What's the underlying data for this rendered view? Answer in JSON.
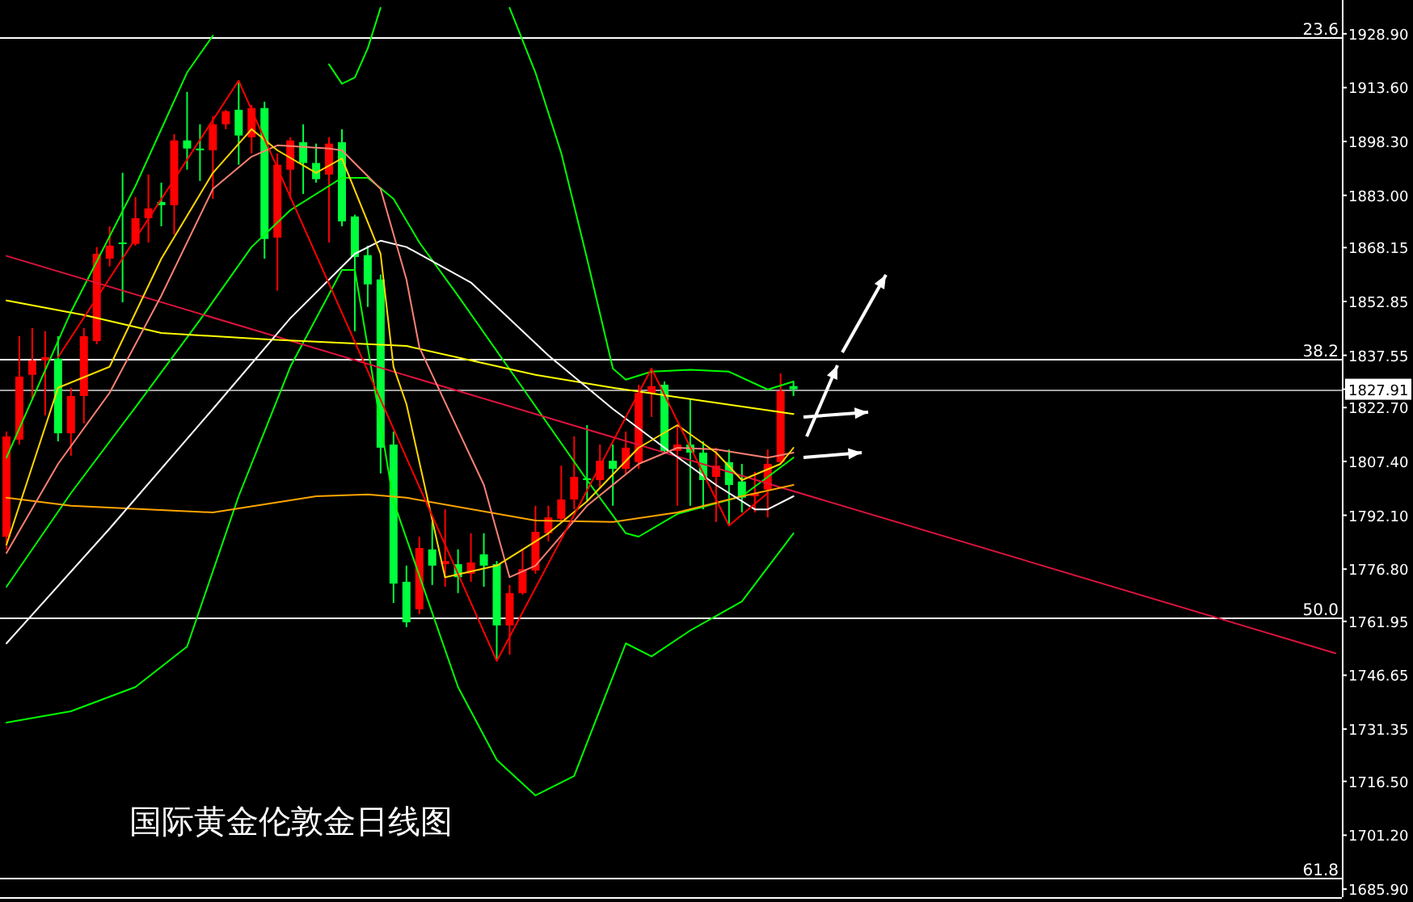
{
  "chart_data": {
    "type": "candlestick",
    "title": "国际黄金伦敦金日线图",
    "categories": [
      null,
      null,
      null,
      null,
      null,
      null,
      null,
      null,
      null,
      null,
      null,
      null,
      null,
      null,
      null,
      null,
      null,
      null,
      null,
      null,
      null,
      null,
      null,
      null,
      null,
      null,
      null,
      null,
      null,
      null,
      null,
      null,
      null,
      null,
      null,
      null,
      null,
      null,
      null,
      null,
      null,
      null,
      null,
      null,
      null,
      null,
      null,
      null,
      null,
      null,
      null,
      null,
      null,
      null,
      null,
      null,
      null,
      null,
      null,
      null,
      null,
      null,
      null,
      null,
      null,
      null,
      null,
      null,
      null,
      null,
      null,
      null,
      null,
      null,
      null,
      null,
      null,
      null,
      null,
      null,
      null,
      null,
      null,
      null,
      null,
      null,
      null,
      null,
      null,
      null,
      null,
      null,
      null,
      null,
      null,
      null,
      null,
      null,
      null,
      null,
      null,
      null,
      null,
      null
    ],
    "ohlc": [
      [
        1786.0,
        1815.9,
        1782.4,
        1814.5
      ],
      [
        1813.6,
        1843.0,
        1812.2,
        1831.5
      ],
      [
        1832.0,
        1845.3,
        1825.1,
        1836.1
      ],
      [
        1836.1,
        1844.4,
        1820.5,
        1837.0
      ],
      [
        1836.6,
        1843.0,
        1813.1,
        1815.4
      ],
      [
        1815.4,
        1828.3,
        1809.0,
        1826.0
      ],
      [
        1826.0,
        1845.3,
        1818.2,
        1843.0
      ],
      [
        1841.6,
        1868.3,
        1840.7,
        1866.4
      ],
      [
        1865.0,
        1874.2,
        1862.8,
        1868.7
      ],
      [
        1869.6,
        1889.4,
        1852.6,
        1869.2
      ],
      [
        1869.2,
        1882.5,
        1868.7,
        1876.5
      ],
      [
        1876.5,
        1888.9,
        1869.6,
        1879.3
      ],
      [
        1881.1,
        1886.6,
        1874.2,
        1880.2
      ],
      [
        1880.2,
        1900.4,
        1871.9,
        1898.6
      ],
      [
        1898.6,
        1912.4,
        1890.3,
        1896.3
      ],
      [
        1896.3,
        1903.2,
        1887.1,
        1895.8
      ],
      [
        1895.8,
        1905.5,
        1882.0,
        1903.2
      ],
      [
        1903.2,
        1907.3,
        1901.8,
        1906.9
      ],
      [
        1907.3,
        1915.6,
        1891.7,
        1900.0
      ],
      [
        1899.5,
        1908.7,
        1894.9,
        1907.8
      ],
      [
        1907.8,
        1909.6,
        1865.0,
        1870.6
      ],
      [
        1871.0,
        1894.9,
        1855.9,
        1891.7
      ],
      [
        1890.3,
        1899.5,
        1882.0,
        1898.6
      ],
      [
        1898.1,
        1903.2,
        1883.4,
        1892.2
      ],
      [
        1892.2,
        1897.7,
        1886.6,
        1887.6
      ],
      [
        1888.9,
        1899.5,
        1869.6,
        1897.7
      ],
      [
        1898.1,
        1901.8,
        1874.2,
        1875.6
      ],
      [
        1877.0,
        1877.5,
        1844.4,
        1865.5
      ],
      [
        1866.0,
        1868.7,
        1851.3,
        1857.7
      ],
      [
        1859.1,
        1860.5,
        1804.0,
        1811.3
      ],
      [
        1812.2,
        1815.9,
        1767.2,
        1772.7
      ],
      [
        1773.2,
        1777.8,
        1760.3,
        1761.7
      ],
      [
        1765.4,
        1786.0,
        1764.0,
        1782.8
      ],
      [
        1782.4,
        1790.2,
        1772.3,
        1777.8
      ],
      [
        1778.2,
        1793.8,
        1771.8,
        1779.1
      ],
      [
        1778.2,
        1782.4,
        1770.0,
        1774.5
      ],
      [
        1775.5,
        1787.0,
        1773.2,
        1778.7
      ],
      [
        1781.0,
        1787.0,
        1771.8,
        1777.8
      ],
      [
        1778.2,
        1779.1,
        1750.7,
        1760.8
      ],
      [
        1760.8,
        1772.3,
        1752.5,
        1770.0
      ],
      [
        1770.0,
        1782.4,
        1769.5,
        1776.8
      ],
      [
        1776.4,
        1794.8,
        1775.5,
        1787.4
      ],
      [
        1787.0,
        1794.8,
        1784.7,
        1791.5
      ],
      [
        1791.1,
        1806.2,
        1790.2,
        1796.6
      ],
      [
        1796.6,
        1814.5,
        1793.8,
        1803.0
      ],
      [
        1802.6,
        1817.7,
        1796.1,
        1802.1
      ],
      [
        1802.1,
        1812.2,
        1799.8,
        1807.6
      ],
      [
        1807.6,
        1812.2,
        1794.8,
        1805.3
      ],
      [
        1805.3,
        1815.9,
        1804.0,
        1811.3
      ],
      [
        1807.2,
        1829.2,
        1805.3,
        1826.9
      ],
      [
        1826.9,
        1833.8,
        1820.0,
        1828.8
      ],
      [
        1829.2,
        1830.1,
        1809.9,
        1810.4
      ],
      [
        1810.4,
        1817.7,
        1794.8,
        1812.2
      ],
      [
        1812.2,
        1825.1,
        1794.8,
        1809.9
      ],
      [
        1809.9,
        1813.1,
        1793.8,
        1802.1
      ],
      [
        1803.0,
        1811.3,
        1790.2,
        1806.2
      ],
      [
        1807.2,
        1810.8,
        1789.2,
        1800.7
      ],
      [
        1801.7,
        1806.7,
        1792.9,
        1797.1
      ],
      [
        1797.5,
        1804.4,
        1792.9,
        1798.4
      ],
      [
        1799.4,
        1810.8,
        1791.5,
        1806.7
      ],
      [
        1807.2,
        1832.4,
        1806.7,
        1827.4
      ],
      [
        1828.8,
        1830.1,
        1826.0,
        1827.91
      ],
      null,
      null,
      null,
      null,
      null,
      null,
      null,
      null,
      null,
      null,
      null,
      null,
      null,
      null,
      null,
      null,
      null,
      null,
      null,
      null,
      null,
      null,
      null,
      null,
      null,
      null,
      null,
      null,
      null,
      null,
      null,
      null,
      null,
      null,
      null,
      null,
      null,
      null,
      null,
      null,
      null,
      null
    ],
    "colors": [
      "#ff0000",
      "#ff0000",
      "#ff0000",
      "#ff0000",
      "#00ff3c",
      "#ff0000",
      "#ff0000",
      "#ff0000",
      "#ff0000",
      "#00ff3c",
      "#ff0000",
      "#ff0000",
      "#00ff3c",
      "#ff0000",
      "#00ff3c",
      "#00ff3c",
      "#ff0000",
      "#ff0000",
      "#00ff3c",
      "#ff0000",
      "#00ff3c",
      "#ff0000",
      "#ff0000",
      "#00ff3c",
      "#00ff3c",
      "#ff0000",
      "#00ff3c",
      "#00ff3c",
      "#00ff3c",
      "#00ff3c",
      "#00ff3c",
      "#00ff3c",
      "#ff0000",
      "#00ff3c",
      "#ff0000",
      "#00ff3c",
      "#ff0000",
      "#00ff3c",
      "#00ff3c",
      "#ff0000",
      "#ff0000",
      "#ff0000",
      "#ff0000",
      "#ff0000",
      "#ff0000",
      "#00ff3c",
      "#ff0000",
      "#00ff3c",
      "#ff0000",
      "#ff0000",
      "#ff0000",
      "#00ff3c",
      "#ff0000",
      "#00ff3c",
      "#00ff3c",
      "#ff0000",
      "#00ff3c",
      "#00ff3c",
      "#ff0000",
      "#ff0000",
      "#ff0000",
      "#00ff3c",
      null,
      null,
      null,
      null,
      null,
      null,
      null,
      null,
      null,
      null,
      null,
      null,
      null,
      null,
      null,
      null,
      null,
      null,
      null,
      null,
      null,
      null,
      null,
      null,
      null,
      null,
      null,
      null,
      null,
      null,
      null,
      null,
      null,
      null,
      null,
      null,
      null,
      null,
      null,
      null,
      null,
      null
    ],
    "series": [
      {
        "type": "line",
        "color": "#00ff00",
        "values": [
          1808.5,
          null,
          null,
          null,
          null,
          1849.9,
          null,
          null,
          null,
          null,
          1885.7,
          null,
          null,
          null,
          1917.9,
          null,
          1928.4,
          null,
          null,
          null,
          null,
          null,
          null,
          null,
          null,
          null,
          null,
          null,
          null,
          null,
          null,
          null,
          null,
          null,
          null,
          null,
          null,
          null,
          null,
          null,
          null,
          null,
          null,
          null,
          null,
          null,
          null,
          null,
          null,
          null,
          null,
          null,
          null,
          null,
          null,
          null,
          null,
          null,
          null,
          null,
          null,
          null,
          null,
          null,
          null,
          null,
          null,
          null,
          null,
          null,
          null,
          null,
          null,
          null,
          null,
          null,
          null,
          null,
          null,
          null,
          null,
          null,
          null,
          null,
          null,
          null,
          null,
          null,
          null,
          null,
          null,
          null,
          null,
          null,
          null,
          null,
          null,
          null,
          null,
          null,
          null,
          null,
          null,
          null
        ]
      },
      {
        "type": "line",
        "color": "#00ff00",
        "values": [
          null,
          null,
          null,
          null,
          null,
          null,
          null,
          null,
          null,
          null,
          null,
          null,
          null,
          null,
          null,
          null,
          null,
          null,
          null,
          null,
          null,
          null,
          null,
          null,
          null,
          1920.2,
          1914.7,
          1916.5,
          1924.8,
          1936.3,
          null,
          null,
          null,
          null,
          null,
          null,
          null,
          null,
          null,
          null,
          null,
          null,
          null,
          null,
          null,
          null,
          null,
          null,
          null,
          null,
          null,
          null,
          null,
          null,
          null,
          null,
          null,
          null,
          null,
          null,
          null,
          null,
          null,
          null,
          null,
          null,
          null,
          null,
          null,
          null,
          null,
          null,
          null,
          null,
          null,
          null,
          null,
          null,
          null,
          null,
          null,
          null,
          null,
          null,
          null,
          null,
          null,
          null,
          null,
          null,
          null,
          null,
          null,
          null,
          null,
          null,
          null,
          null,
          null,
          null,
          null,
          null,
          null,
          null
        ]
      },
      {
        "type": "line",
        "color": "#00ff00",
        "values": [
          null,
          null,
          null,
          null,
          null,
          null,
          null,
          null,
          null,
          null,
          null,
          null,
          null,
          null,
          null,
          null,
          null,
          null,
          null,
          null,
          null,
          null,
          null,
          null,
          null,
          null,
          null,
          null,
          null,
          null,
          null,
          null,
          null,
          null,
          null,
          null,
          null,
          null,
          null,
          1936.3,
          null,
          1917.9,
          null,
          1894.9,
          null,
          1865.0,
          null,
          1833.8,
          1830.6,
          null,
          1832.9,
          null,
          null,
          1833.4,
          null,
          null,
          1832.9,
          null,
          null,
          1827.8,
          null,
          1830.1,
          null,
          null,
          null,
          null,
          null,
          null,
          null,
          null,
          null,
          null,
          null,
          null,
          null,
          null,
          null,
          null,
          null,
          null,
          null,
          null,
          null,
          null,
          null,
          null,
          null,
          null,
          null,
          null,
          null,
          null,
          null,
          null,
          null,
          null,
          null,
          null,
          null,
          null,
          null,
          null,
          null,
          null
        ]
      },
      {
        "type": "line",
        "color": "#00ff00",
        "values": [
          1771.8,
          null,
          null,
          null,
          null,
          1798.4,
          null,
          null,
          null,
          null,
          1822.8,
          null,
          null,
          null,
          null,
          1847.6,
          null,
          null,
          null,
          1868.3,
          null,
          null,
          1878.8,
          null,
          null,
          null,
          1888.0,
          null,
          1888.0,
          null,
          1882.0,
          null,
          1869.6,
          null,
          null,
          1854.5,
          null,
          null,
          null,
          null,
          1828.3,
          null,
          null,
          null,
          null,
          1802.1,
          null,
          null,
          1787.0,
          1786.0,
          null,
          null,
          1792.5,
          null,
          null,
          null,
          null,
          1797.5,
          null,
          null,
          null,
          1808.5,
          null,
          null,
          null,
          null,
          null,
          null,
          null,
          null,
          null,
          null,
          null,
          null,
          null,
          null,
          null,
          null,
          null,
          null,
          null,
          null,
          null,
          null,
          null,
          null,
          null,
          null,
          null,
          null,
          null,
          null,
          null,
          null,
          null,
          null,
          null,
          null,
          null,
          null,
          null,
          null,
          null,
          null
        ]
      },
      {
        "type": "line",
        "color": "#00ff00",
        "values": [
          1733.2,
          null,
          null,
          null,
          null,
          1736.4,
          null,
          null,
          null,
          null,
          1743.3,
          null,
          null,
          null,
          1754.8,
          null,
          null,
          null,
          1797.5,
          null,
          null,
          null,
          1834.3,
          null,
          null,
          null,
          1861.8,
          1861.8,
          null,
          null,
          1796.1,
          null,
          null,
          null,
          null,
          1743.3,
          null,
          null,
          1722.6,
          null,
          null,
          1712.5,
          null,
          null,
          1718.0,
          null,
          null,
          null,
          1755.7,
          null,
          1752.0,
          null,
          null,
          1759.4,
          null,
          null,
          null,
          1767.6,
          null,
          null,
          null,
          1787.0,
          null,
          null,
          null,
          null,
          null,
          null,
          null,
          null,
          null,
          null,
          null,
          null,
          null,
          null,
          null,
          null,
          null,
          null,
          null,
          null,
          null,
          null,
          null,
          null,
          null,
          null,
          null,
          null,
          null,
          null,
          null,
          null,
          null,
          null,
          null,
          null,
          null,
          null,
          null,
          null,
          null,
          null
        ]
      },
      {
        "type": "line",
        "color": "#dc143c",
        "values": [
          1865.8,
          null,
          null,
          null,
          null,
          null,
          null,
          null,
          null,
          null,
          null,
          null,
          null,
          null,
          null,
          null,
          null,
          null,
          null,
          null,
          null,
          null,
          null,
          null,
          null,
          null,
          null,
          null,
          null,
          null,
          null,
          null,
          null,
          null,
          null,
          null,
          null,
          null,
          null,
          null,
          null,
          null,
          null,
          null,
          null,
          null,
          null,
          null,
          null,
          null,
          null,
          null,
          null,
          null,
          null,
          null,
          null,
          null,
          null,
          null,
          null,
          null,
          null,
          null,
          null,
          null,
          null,
          null,
          null,
          null,
          null,
          null,
          null,
          null,
          null,
          null,
          null,
          null,
          null,
          null,
          null,
          null,
          null,
          null,
          null,
          null,
          null,
          null,
          null,
          null,
          null,
          null,
          null,
          null,
          null,
          null,
          null,
          null,
          null,
          null,
          null,
          null,
          null,
          1752.9
        ]
      },
      {
        "type": "line",
        "color": "#ffff00",
        "values": [
          1853.1,
          null,
          null,
          null,
          null,
          null,
          1849.0,
          null,
          null,
          null,
          null,
          null,
          1843.9,
          null,
          null,
          null,
          null,
          null,
          null,
          null,
          1842.1,
          null,
          null,
          null,
          null,
          null,
          null,
          null,
          null,
          null,
          null,
          1840.2,
          null,
          null,
          null,
          null,
          null,
          null,
          null,
          null,
          null,
          1832.0,
          null,
          null,
          null,
          null,
          null,
          1828.3,
          null,
          null,
          null,
          null,
          null,
          1825.1,
          null,
          null,
          null,
          null,
          null,
          null,
          null,
          1820.9,
          null,
          null,
          null,
          null,
          null,
          null,
          null,
          null,
          null,
          null,
          null,
          null,
          null,
          null,
          null,
          null,
          null,
          null,
          null,
          null,
          null,
          null,
          null,
          null,
          null,
          null,
          null,
          null,
          null,
          null,
          null,
          null,
          null,
          null,
          null,
          null,
          null,
          null,
          null,
          null,
          null,
          null
        ]
      },
      {
        "type": "line",
        "color": "#ffa500",
        "values": [
          1797.1,
          null,
          null,
          null,
          null,
          1794.8,
          null,
          null,
          null,
          null,
          null,
          null,
          null,
          null,
          null,
          null,
          1792.9,
          null,
          null,
          null,
          null,
          null,
          null,
          null,
          1797.5,
          null,
          null,
          null,
          1798.0,
          null,
          null,
          1797.1,
          null,
          null,
          null,
          null,
          null,
          null,
          null,
          null,
          null,
          1790.6,
          null,
          null,
          null,
          null,
          null,
          1790.2,
          null,
          null,
          null,
          null,
          1792.9,
          null,
          null,
          null,
          null,
          1797.5,
          null,
          null,
          null,
          1800.7,
          null,
          null,
          null,
          null,
          null,
          null,
          null,
          null,
          null,
          null,
          null,
          null,
          null,
          null,
          null,
          null,
          null,
          null,
          null,
          null,
          null,
          null,
          null,
          null,
          null,
          null,
          null,
          null,
          null,
          null,
          null,
          null,
          null,
          null,
          null,
          null,
          null,
          null,
          null,
          null,
          null,
          null
        ]
      },
      {
        "type": "line",
        "color": "#ffffff",
        "values": [
          1755.7,
          null,
          null,
          null,
          null,
          null,
          null,
          null,
          1788.3,
          null,
          null,
          null,
          null,
          null,
          null,
          null,
          1822.3,
          null,
          null,
          null,
          null,
          null,
          1848.1,
          null,
          null,
          null,
          null,
          1866.4,
          null,
          1870.1,
          null,
          1868.3,
          null,
          null,
          null,
          null,
          1858.2,
          null,
          null,
          null,
          null,
          null,
          1837.5,
          null,
          null,
          null,
          null,
          1822.3,
          null,
          null,
          null,
          1811.3,
          null,
          null,
          null,
          1800.7,
          null,
          null,
          1793.8,
          1793.8,
          null,
          1797.5,
          null,
          null,
          null,
          null,
          null,
          null,
          null,
          null,
          null,
          null,
          null,
          null,
          null,
          null,
          null,
          null,
          null,
          null,
          null,
          null,
          null,
          null,
          null,
          null,
          null,
          null,
          null,
          null,
          null,
          null,
          null,
          null,
          null,
          null,
          null,
          null,
          null,
          null,
          null,
          null,
          null,
          null
        ]
      },
      {
        "type": "line",
        "color": "#fa8072",
        "values": [
          1781.4,
          null,
          null,
          null,
          1806.7,
          null,
          null,
          null,
          1826.9,
          null,
          null,
          null,
          1854.5,
          null,
          null,
          null,
          1884.8,
          null,
          null,
          1894.0,
          null,
          1897.2,
          null,
          null,
          null,
          1896.3,
          1895.8,
          null,
          null,
          1884.8,
          null,
          1859.1,
          1839.8,
          null,
          null,
          null,
          null,
          1800.7,
          null,
          1774.5,
          null,
          1777.8,
          null,
          null,
          null,
          1794.8,
          null,
          null,
          null,
          1806.7,
          null,
          null,
          1811.3,
          null,
          null,
          1810.8,
          null,
          null,
          null,
          1808.5,
          null,
          1809.9,
          null,
          null,
          null,
          null,
          null,
          null,
          null,
          null,
          null,
          null,
          null,
          null,
          null,
          null,
          null,
          null,
          null,
          null,
          null,
          null,
          null,
          null,
          null,
          null,
          null,
          null,
          null,
          null,
          null,
          null,
          null,
          null,
          null,
          null,
          null,
          null,
          null,
          null,
          null,
          null,
          null,
          null
        ]
      },
      {
        "type": "line",
        "color": "#ffd700",
        "values": [
          1783.7,
          null,
          null,
          null,
          1828.3,
          null,
          null,
          null,
          1834.3,
          null,
          null,
          null,
          1865.0,
          null,
          null,
          null,
          1889.4,
          null,
          null,
          1901.8,
          null,
          1895.8,
          null,
          null,
          1889.4,
          null,
          1893.5,
          null,
          null,
          1866.4,
          1834.3,
          1823.7,
          null,
          null,
          1774.5,
          null,
          null,
          null,
          1777.8,
          null,
          null,
          null,
          1787.0,
          null,
          null,
          1796.1,
          null,
          null,
          null,
          1811.3,
          null,
          null,
          1817.7,
          null,
          null,
          1809.9,
          null,
          1802.1,
          null,
          null,
          1806.7,
          1811.3,
          null,
          null,
          null,
          null,
          null,
          null,
          null,
          null,
          null,
          null,
          null,
          null,
          null,
          null,
          null,
          null,
          null,
          null,
          null,
          null,
          null,
          null,
          null,
          null,
          null,
          null,
          null,
          null,
          null,
          null,
          null,
          null,
          null,
          null,
          null,
          null,
          null,
          null,
          null,
          null,
          null,
          null
        ]
      },
      {
        "type": "line",
        "color": "#ff0000",
        "values": [
          null,
          null,
          null,
          null,
          1837.0,
          null,
          null,
          null,
          null,
          null,
          null,
          null,
          null,
          null,
          null,
          null,
          null,
          null,
          1915.6,
          null,
          null,
          null,
          null,
          null,
          null,
          null,
          null,
          null,
          null,
          null,
          null,
          null,
          null,
          null,
          null,
          null,
          null,
          null,
          1750.7,
          null,
          null,
          null,
          null,
          null,
          null,
          null,
          null,
          null,
          null,
          null,
          1833.8,
          null,
          null,
          null,
          null,
          null,
          1789.2,
          null,
          null,
          1798.4,
          null,
          null,
          null,
          null,
          null,
          null,
          null,
          null,
          null,
          null,
          null,
          null,
          null,
          null,
          null,
          null,
          null,
          null,
          null,
          null,
          null,
          null,
          null,
          null,
          null,
          null,
          null,
          null,
          null,
          null,
          null,
          null,
          null,
          null,
          null,
          null,
          null,
          null,
          null,
          null,
          null,
          null,
          null,
          null
        ]
      }
    ],
    "ylim": [
      1683.6,
      1938.5
    ],
    "yticks": [
      {
        "value": 1928.9,
        "label": "1928.90"
      },
      {
        "value": 1913.6,
        "label": "1913.60"
      },
      {
        "value": 1898.3,
        "label": "1898.30"
      },
      {
        "value": 1883.0,
        "label": "1883.00"
      },
      {
        "value": 1868.15,
        "label": "1868.15"
      },
      {
        "value": 1852.85,
        "label": "1852.85"
      },
      {
        "value": 1837.55,
        "label": "1837.55"
      },
      {
        "value": 1822.7,
        "label": "1822.70"
      },
      {
        "value": 1807.4,
        "label": "1807.40"
      },
      {
        "value": 1792.1,
        "label": "1792.10"
      },
      {
        "value": 1776.8,
        "label": "1776.80"
      },
      {
        "value": 1761.95,
        "label": "1761.95"
      },
      {
        "value": 1746.65,
        "label": "1746.65"
      },
      {
        "value": 1731.35,
        "label": "1731.35"
      },
      {
        "value": 1716.5,
        "label": "1716.50"
      },
      {
        "value": 1701.2,
        "label": "1701.20"
      },
      {
        "value": 1685.9,
        "label": "1685.90"
      },
      {
        "value": 1827.91,
        "label": "1827.91"
      }
    ],
    "ref_lines": [
      {
        "axis": "y",
        "value": 1928.0,
        "color": "#ffffff"
      },
      {
        "axis": "y",
        "value": 1836.6,
        "color": "#ffffff"
      },
      {
        "axis": "y",
        "value": 1763.1,
        "color": "#ffffff"
      },
      {
        "axis": "y",
        "value": 1689.1,
        "color": "#ffffff"
      },
      {
        "axis": "y",
        "value": 1827.91,
        "color": "#a0a0a0"
      }
    ],
    "annotations": [
      {
        "text": "23.6",
        "y": 1928.0
      },
      {
        "text": "38.2",
        "y": 1836.6
      },
      {
        "text": "50.0",
        "y": 1763.1
      },
      {
        "text": "61.8",
        "y": 1689.1
      }
    ]
  }
}
